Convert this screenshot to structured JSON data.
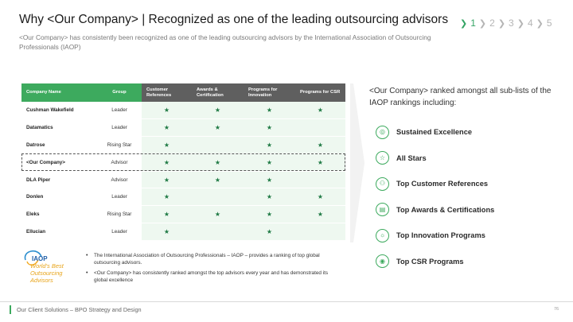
{
  "header": {
    "title": "Why <Our Company> | Recognized as one of the leading outsourcing advisors",
    "subtitle": "<Our Company> has consistently been recognized as one of the leading outsourcing advisors by the International Association of Outsourcing Professionals (IAOP)"
  },
  "stepper": {
    "steps": [
      "1",
      "2",
      "3",
      "4",
      "5"
    ],
    "active": "1"
  },
  "table": {
    "columns": [
      "Company Name",
      "Group",
      "Customer References",
      "Awards & Certification",
      "Programs for Innovation",
      "Programs for CSR"
    ],
    "mark_glyph": "★",
    "rows": [
      {
        "name": "Cushman Wakefield",
        "group": "Leader",
        "marks": [
          "★",
          "★",
          "★",
          "★"
        ]
      },
      {
        "name": "Datamatics",
        "group": "Leader",
        "marks": [
          "★",
          "★",
          "★",
          ""
        ]
      },
      {
        "name": "Datrose",
        "group": "Rising Star",
        "marks": [
          "★",
          "",
          "★",
          "★"
        ]
      },
      {
        "name": "<Our Company>",
        "group": "Advisor",
        "marks": [
          "★",
          "★",
          "★",
          "★"
        ]
      },
      {
        "name": "DLA Piper",
        "group": "Advisor",
        "marks": [
          "★",
          "★",
          "★",
          ""
        ]
      },
      {
        "name": "Donlen",
        "group": "Leader",
        "marks": [
          "★",
          "",
          "★",
          "★"
        ]
      },
      {
        "name": "Eleks",
        "group": "Rising Star",
        "marks": [
          "★",
          "★",
          "★",
          "★"
        ]
      },
      {
        "name": "Ellucian",
        "group": "Leader",
        "marks": [
          "★",
          "",
          "★",
          ""
        ]
      }
    ]
  },
  "rankings": {
    "heading": "<Our Company> ranked amongst all sub-lists of the IAOP rankings including:",
    "items": [
      {
        "label": "Sustained Excellence",
        "icon": "medal-icon"
      },
      {
        "label": "All Stars",
        "icon": "star-icon"
      },
      {
        "label": "Top Customer References",
        "icon": "people-icon"
      },
      {
        "label": "Top Awards & Certifications",
        "icon": "certificate-icon"
      },
      {
        "label": "Top Innovation Programs",
        "icon": "lightbulb-icon"
      },
      {
        "label": "Top CSR Programs",
        "icon": "eye-icon"
      }
    ]
  },
  "logo": {
    "brand": "IAOP",
    "tagline": "World's Best Outsourcing Advisors"
  },
  "notes": [
    "The International Association of Outsourcing Professionals – IAOP – provides a ranking of top global outsourcing advisors.",
    "<Our Company> has consistently ranked amongst the top advisors every year and has demonstrated its global excellence"
  ],
  "footer": {
    "text": "Our Client Solutions – BPO Strategy and Design",
    "page": "76"
  },
  "colors": {
    "accent": "#3daa5e",
    "header_dark": "#5f5f5f",
    "row_tint": "#eef8f0",
    "mark": "#1f7a44"
  }
}
